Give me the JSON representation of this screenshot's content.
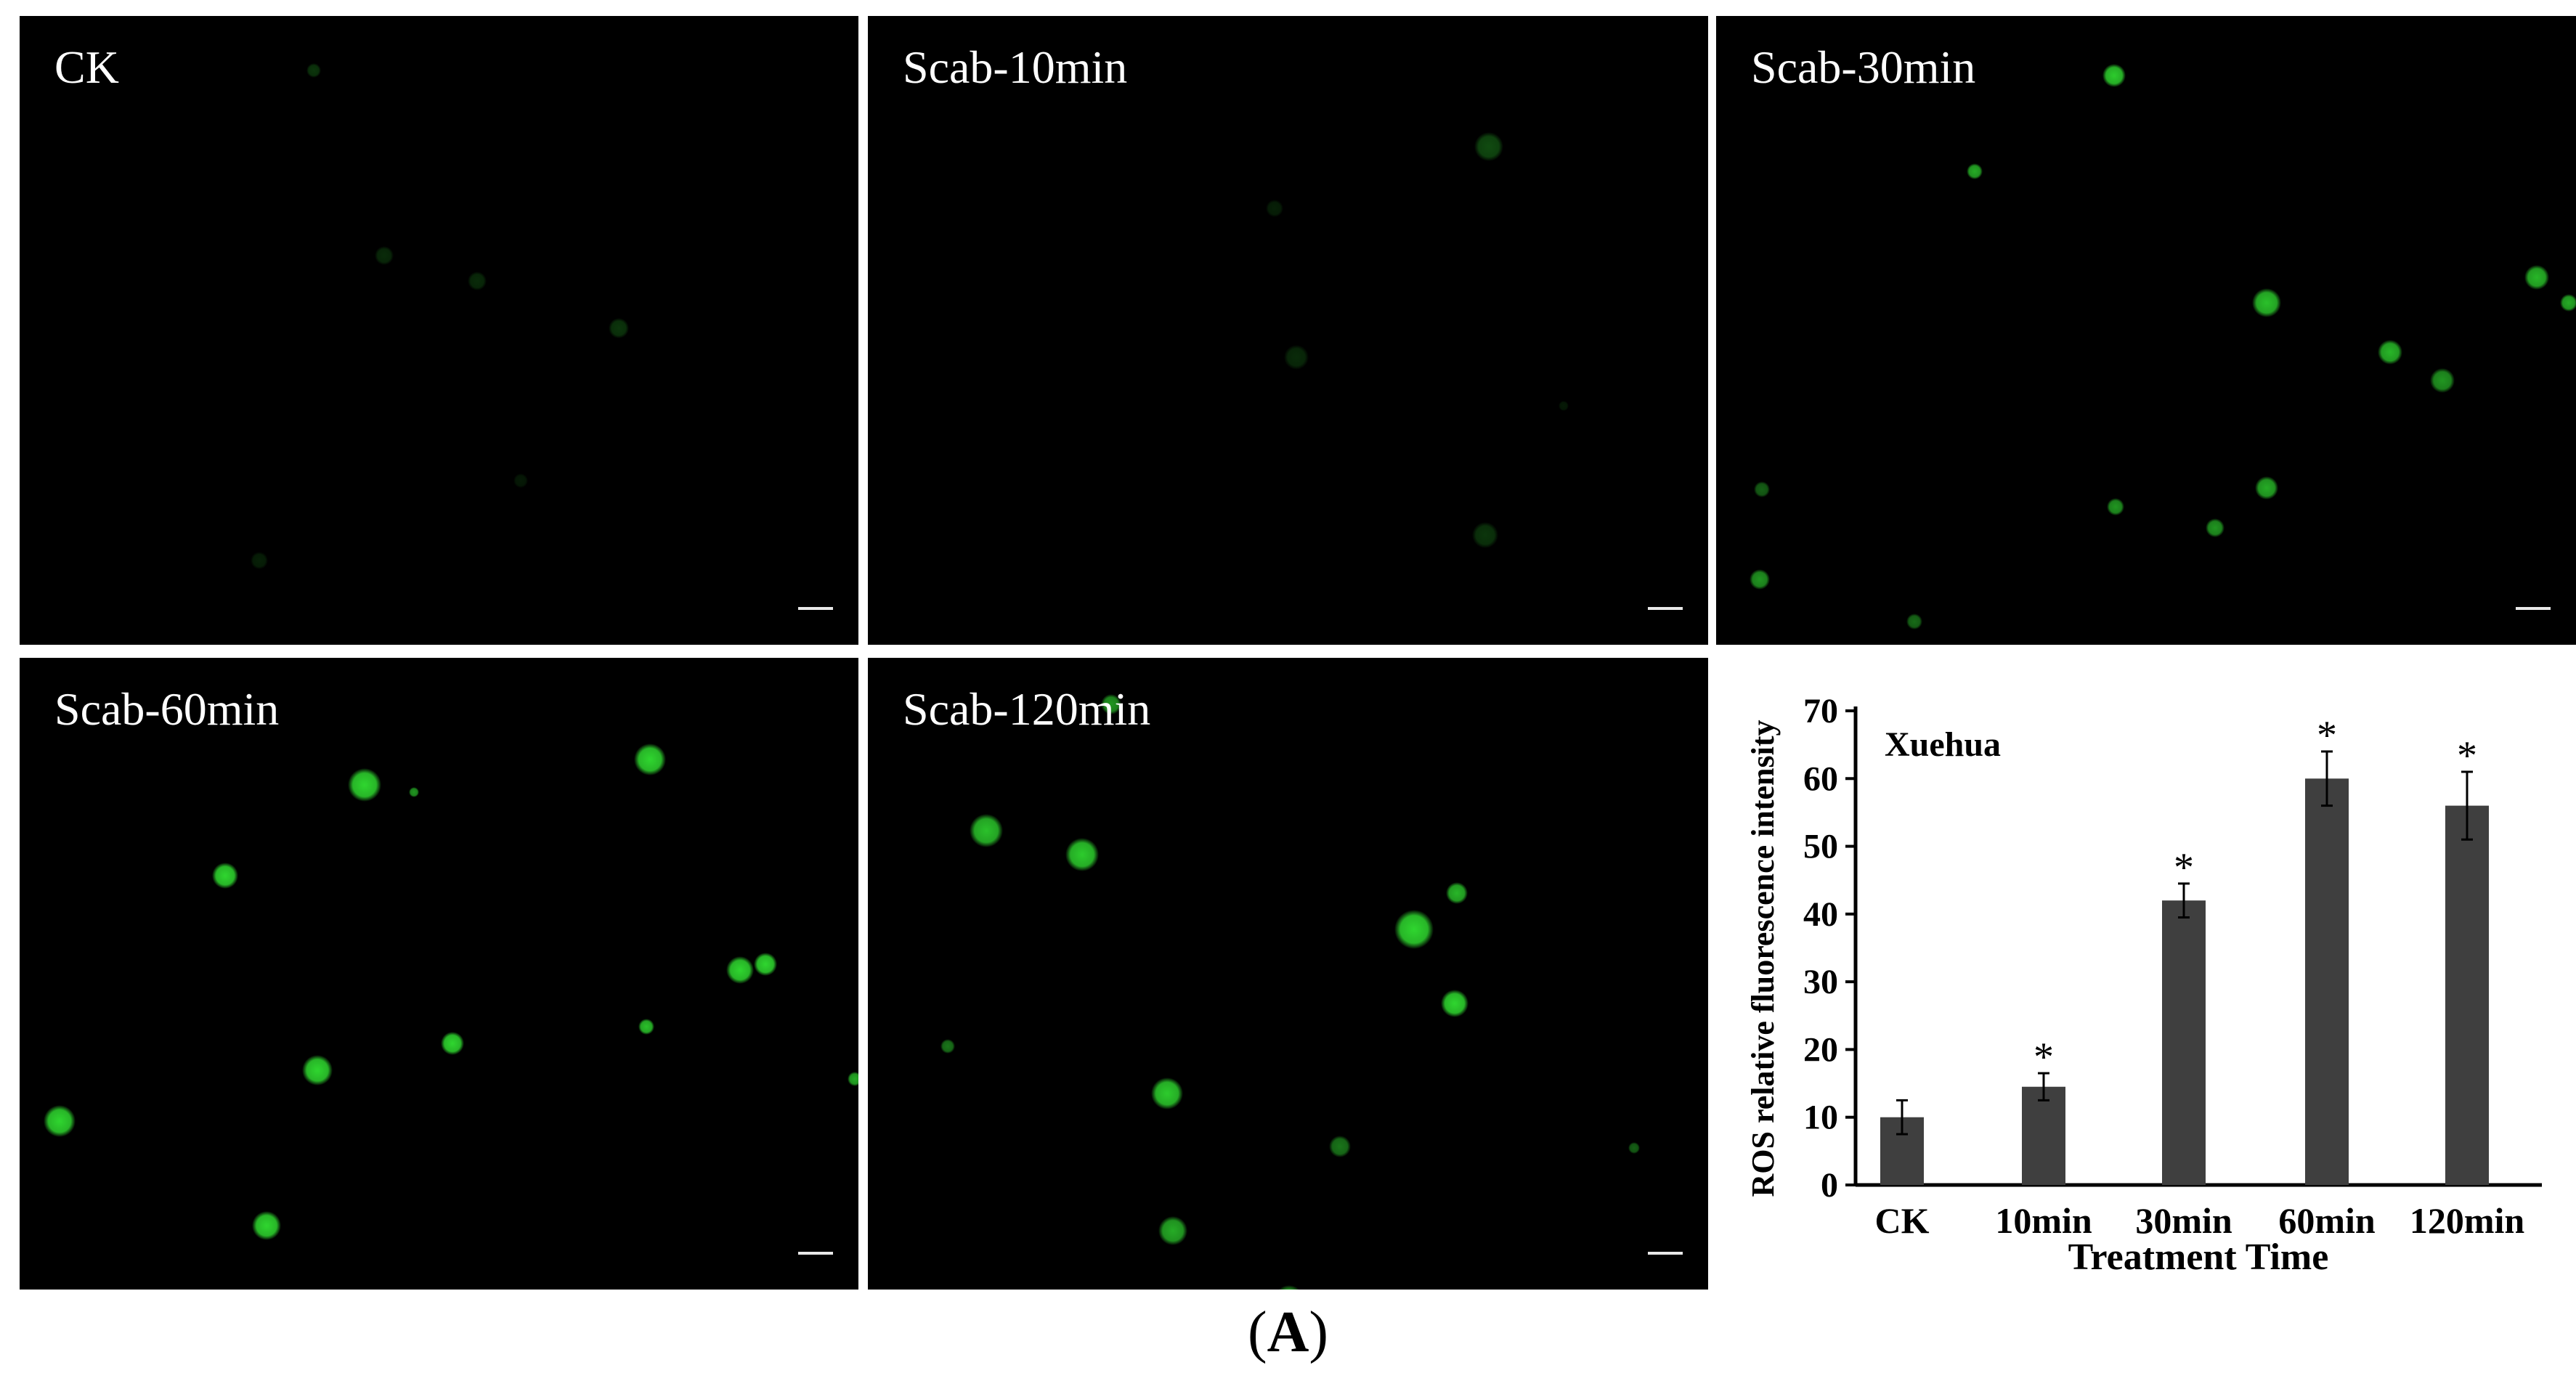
{
  "panels": [
    {
      "label": "CK"
    },
    {
      "label": "Scab-10min"
    },
    {
      "label": "Scab-30min"
    },
    {
      "label": "Scab-60min"
    },
    {
      "label": "Scab-120min"
    }
  ],
  "colors": {
    "fluorescence": "#2fd62f",
    "bar": "#3f3f3f",
    "panel_bg": "#000000",
    "scale_bar": "#e8e8e8"
  },
  "figure_label": {
    "open": "(",
    "letter": "A",
    "close": ")"
  },
  "chart_data": {
    "type": "bar",
    "title": "Xuehua",
    "xlabel": "Treatment Time",
    "ylabel": "ROS relative fluorescence intensity",
    "categories": [
      "CK",
      "10min",
      "30min",
      "60min",
      "120min"
    ],
    "values": [
      10,
      14.5,
      42,
      60,
      56
    ],
    "errors": [
      2.5,
      2,
      2.5,
      4,
      5
    ],
    "significance": [
      "",
      "*",
      "*",
      "*",
      "*"
    ],
    "ylim": [
      0,
      70
    ],
    "yticks": [
      "0",
      "10",
      "20",
      "30",
      "40",
      "50",
      "60",
      "70"
    ],
    "grid": false
  }
}
